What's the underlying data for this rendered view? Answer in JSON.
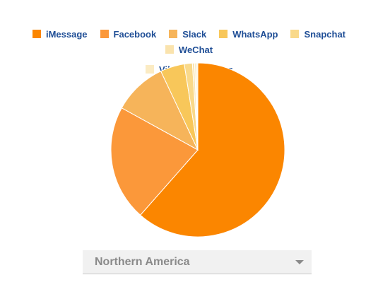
{
  "chart_data": {
    "type": "pie",
    "categories": [
      "iMessage",
      "Facebook",
      "Slack",
      "WhatsApp",
      "Snapchat",
      "WeChat",
      "Viber",
      "Other"
    ],
    "values": [
      61.5,
      21.5,
      10,
      4.5,
      1.5,
      0.4,
      0.3,
      0.3
    ],
    "colors": [
      "#fb8600",
      "#fb983a",
      "#f6b45a",
      "#f8c75a",
      "#f9d98a",
      "#fae3ad",
      "#fbebc3",
      "#fcf0d4"
    ],
    "legend_position": "top"
  },
  "region_selector": {
    "selected": "Northern America"
  }
}
